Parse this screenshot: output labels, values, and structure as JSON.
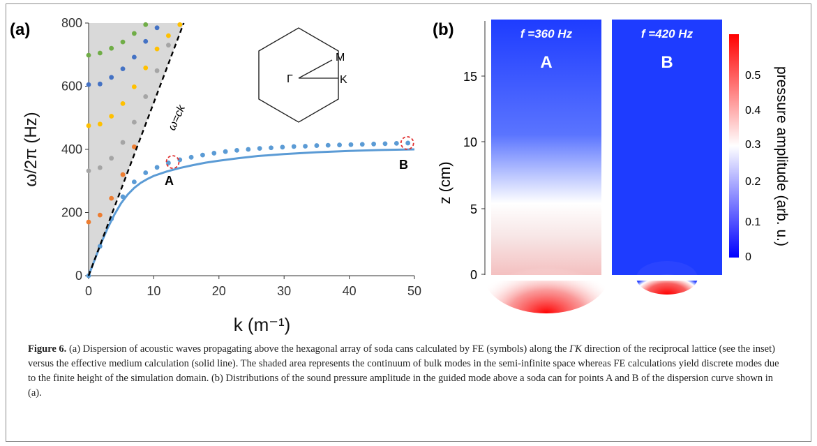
{
  "panel_a": {
    "label": "(a)",
    "inset_labels": {
      "gamma": "Γ",
      "m": "M",
      "k": "K"
    },
    "light_line_label": "ω=ck",
    "point_a_label": "A",
    "point_b_label": "B"
  },
  "panel_b": {
    "label": "(b)",
    "ylabel": "z (cm)",
    "yticks": [
      "0",
      "5",
      "10",
      "15"
    ],
    "colorbar_label": "pressure amplitude (arb. u.)",
    "colorbar_ticks": [
      "0",
      "0.1",
      "0.2",
      "0.3",
      "0.4",
      "0.5"
    ],
    "colormap": [
      "#0000ff",
      "#ffffff",
      "#ff0000"
    ],
    "frame_a": {
      "freq": "f =360 Hz",
      "label": "A"
    },
    "frame_b": {
      "freq": "f =420 Hz",
      "label": "B"
    }
  },
  "caption": {
    "figure_label": "Figure 6.",
    "part1": " (a) Dispersion of acoustic waves propagating above the hexagonal array of soda cans calculated by FE (symbols) along the ",
    "direction": "ΓK",
    "part2": " direction of the reciprocal lattice (see the inset) versus the effective medium calculation (solid line). The shaded area represents the continuum of bulk modes in the semi-infinite space whereas FE calculations yield discrete modes due to the finite height of the simulation domain. (b) Distributions of the sound pressure amplitude in the guided mode above a soda can for points A and B of the dispersion curve shown in (a)."
  },
  "chart_data": {
    "type": "scatter",
    "xlabel": "k (m⁻¹)",
    "ylabel": "ω/2π (Hz)",
    "xlim": [
      0,
      50
    ],
    "ylim": [
      0,
      800
    ],
    "xticks": [
      0,
      10,
      20,
      30,
      40,
      50
    ],
    "yticks": [
      0,
      200,
      400,
      600,
      800
    ],
    "grid": false,
    "colors": {
      "guided": "#5b9bd5",
      "orange": "#ed7d31",
      "gray": "#a5a5a5",
      "yellow": "#ffc000",
      "blue": "#4472c4",
      "green": "#70ad47",
      "shade": "#d9d9d9",
      "marker": "#e03030"
    },
    "series": [
      {
        "key": "fe_guided",
        "color_key": "guided",
        "x": [
          0,
          1.75,
          3.5,
          5.25,
          7.0,
          8.75,
          10.5,
          12.25,
          14.0,
          15.75,
          17.5,
          19.25,
          21.0,
          22.75,
          24.5,
          26.25,
          28.0,
          29.75,
          31.5,
          33.25,
          35.0,
          36.75,
          38.5,
          40.25,
          42.0,
          43.75,
          45.5,
          47.25,
          49.0
        ],
        "y": [
          0,
          93,
          180,
          250,
          297,
          326,
          343,
          357,
          367,
          375,
          382,
          388,
          393,
          397,
          400,
          403,
          405,
          407,
          409,
          410,
          412,
          413,
          414,
          415,
          416,
          417,
          418,
          419,
          420
        ]
      },
      {
        "key": "fe_bulk_orange",
        "color_key": "orange",
        "x": [
          0,
          1.75,
          3.5,
          5.25,
          7.0
        ],
        "y": [
          170,
          192,
          245,
          320,
          408
        ]
      },
      {
        "key": "fe_bulk_gray",
        "color_key": "gray",
        "x": [
          0,
          1.75,
          3.5,
          5.25,
          7.0,
          8.75,
          10.5,
          12.25
        ],
        "y": [
          332,
          342,
          372,
          422,
          486,
          567,
          649,
          730
        ]
      },
      {
        "key": "fe_bulk_yellow",
        "color_key": "yellow",
        "x": [
          0,
          1.75,
          3.5,
          5.25,
          7.0,
          8.75,
          10.5,
          12.25,
          14.0
        ],
        "y": [
          475,
          480,
          505,
          545,
          598,
          658,
          718,
          760,
          795
        ]
      },
      {
        "key": "fe_bulk_blue",
        "color_key": "blue",
        "x": [
          0,
          1.75,
          3.5,
          5.25,
          7.0,
          8.75,
          10.5
        ],
        "y": [
          605,
          607,
          628,
          655,
          692,
          742,
          785
        ]
      },
      {
        "key": "fe_bulk_green",
        "color_key": "green",
        "x": [
          0,
          1.75,
          3.5,
          5.25,
          7.0,
          8.75
        ],
        "y": [
          698,
          705,
          720,
          740,
          767,
          795
        ]
      },
      {
        "key": "effective_medium",
        "color_key": "guided",
        "style": "solid",
        "x": [
          0,
          1,
          2,
          3,
          4,
          5,
          6,
          7,
          8,
          9,
          10,
          12,
          14,
          16,
          18,
          20,
          23,
          26,
          30,
          35,
          40,
          45,
          50
        ],
        "y": [
          0,
          54,
          107,
          154,
          195,
          230,
          257,
          278,
          294,
          306,
          316,
          330,
          341,
          350,
          358,
          364,
          372,
          379,
          385,
          391,
          395,
          398,
          400
        ]
      },
      {
        "key": "light_line",
        "color_key": "black",
        "style": "dashed",
        "x": [
          0,
          14.6
        ],
        "y": [
          0,
          800
        ]
      }
    ],
    "highlighted_points": [
      {
        "label": "A",
        "x": 12.9,
        "y": 360
      },
      {
        "label": "B",
        "x": 48.9,
        "y": 420
      }
    ]
  }
}
